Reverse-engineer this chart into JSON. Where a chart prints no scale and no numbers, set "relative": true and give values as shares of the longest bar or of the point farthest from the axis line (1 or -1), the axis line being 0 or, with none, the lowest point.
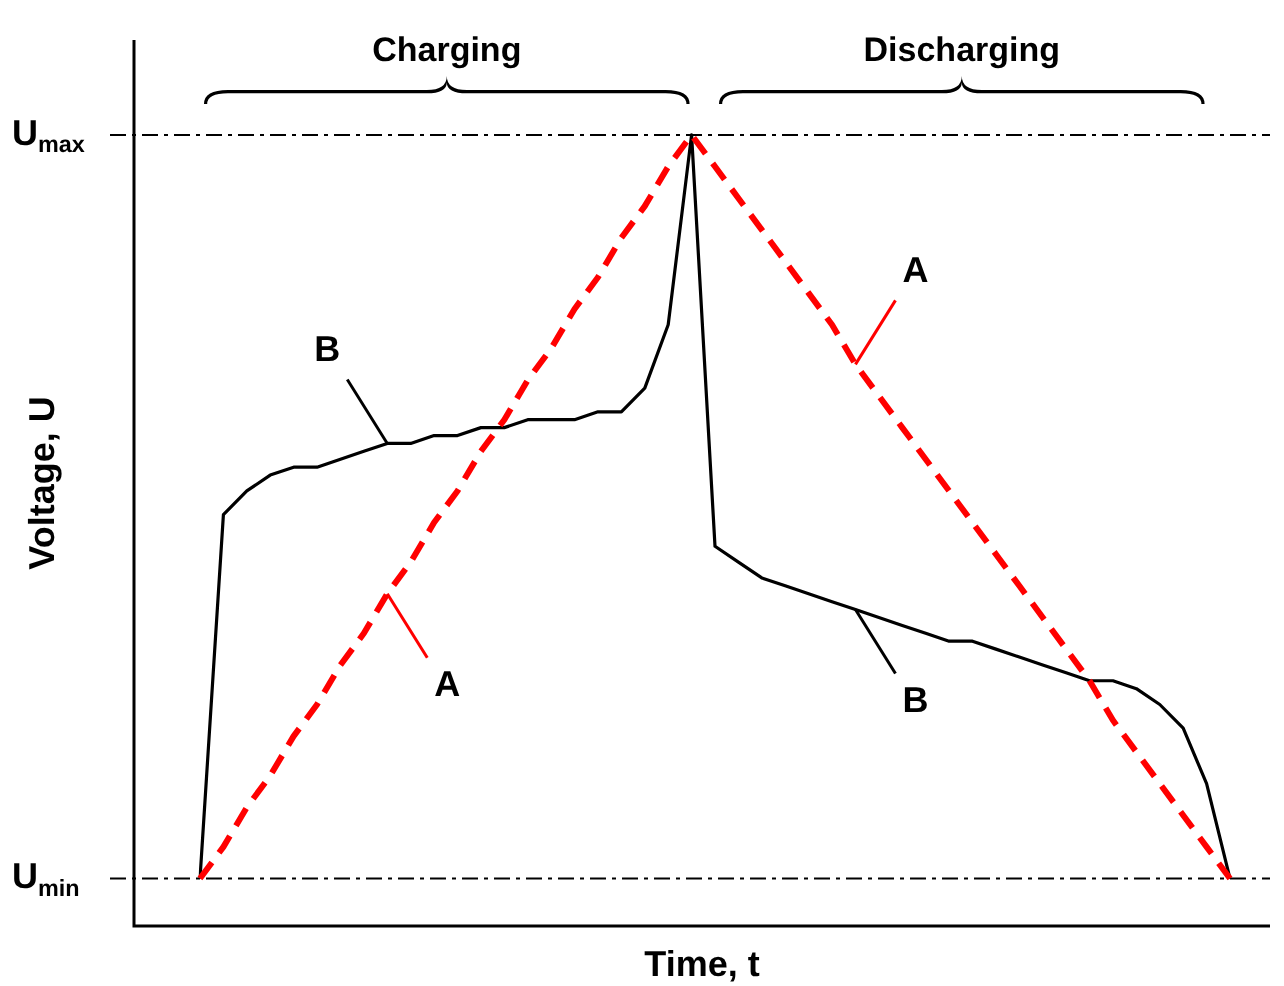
{
  "chart_data": {
    "type": "line",
    "relative": true,
    "legend": "center",
    "xlabel": "Time, t",
    "ylabel": "Voltage, U",
    "marker": "none",
    "categories": [
      null,
      null,
      null,
      null,
      null,
      null,
      null,
      null,
      null,
      null,
      null,
      null,
      null,
      null,
      null,
      null,
      null,
      null,
      null,
      null,
      null,
      null,
      null,
      null,
      null,
      null,
      null,
      null,
      null,
      null,
      null,
      null,
      null,
      null,
      null,
      null,
      null,
      null,
      null,
      null,
      null,
      null,
      null,
      null,
      null
    ],
    "ref_lines": [
      {
        "axis": "y",
        "value": 0.06,
        "label": "U$_{min}$",
        "color": "#000000"
      },
      {
        "axis": "y",
        "value": 1.0,
        "label": "U$_{max}$",
        "color": "#000000"
      }
    ],
    "series": [
      {
        "name": "A",
        "color": "#ff0000",
        "line_style": "dashed",
        "values": [
          0.06,
          0.1,
          0.15,
          0.19,
          0.24,
          0.28,
          0.33,
          0.37,
          0.42,
          0.46,
          0.51,
          0.55,
          0.6,
          0.64,
          0.69,
          0.73,
          0.78,
          0.82,
          0.87,
          0.91,
          0.96,
          1.0,
          0.96,
          0.92,
          0.88,
          0.84,
          0.8,
          0.76,
          0.71,
          0.67,
          0.63,
          0.59,
          0.55,
          0.51,
          0.47,
          0.43,
          0.39,
          0.35,
          0.31,
          0.26,
          0.22,
          0.18,
          0.14,
          0.1,
          0.06
        ]
      },
      {
        "name": "B",
        "color": "#000000",
        "line_style": "solid",
        "values": [
          0.06,
          0.52,
          0.55,
          0.57,
          0.58,
          0.58,
          0.59,
          0.6,
          0.61,
          0.61,
          0.62,
          0.62,
          0.63,
          0.63,
          0.64,
          0.64,
          0.64,
          0.65,
          0.65,
          0.68,
          0.76,
          1.0,
          0.48,
          0.46,
          0.44,
          0.43,
          0.42,
          0.41,
          0.4,
          0.39,
          0.38,
          0.37,
          0.36,
          0.36,
          0.35,
          0.34,
          0.33,
          0.32,
          0.31,
          0.31,
          0.3,
          0.28,
          0.25,
          0.18,
          0.06
        ]
      }
    ],
    "annotations": [
      "Charging",
      "Discharging"
    ]
  }
}
